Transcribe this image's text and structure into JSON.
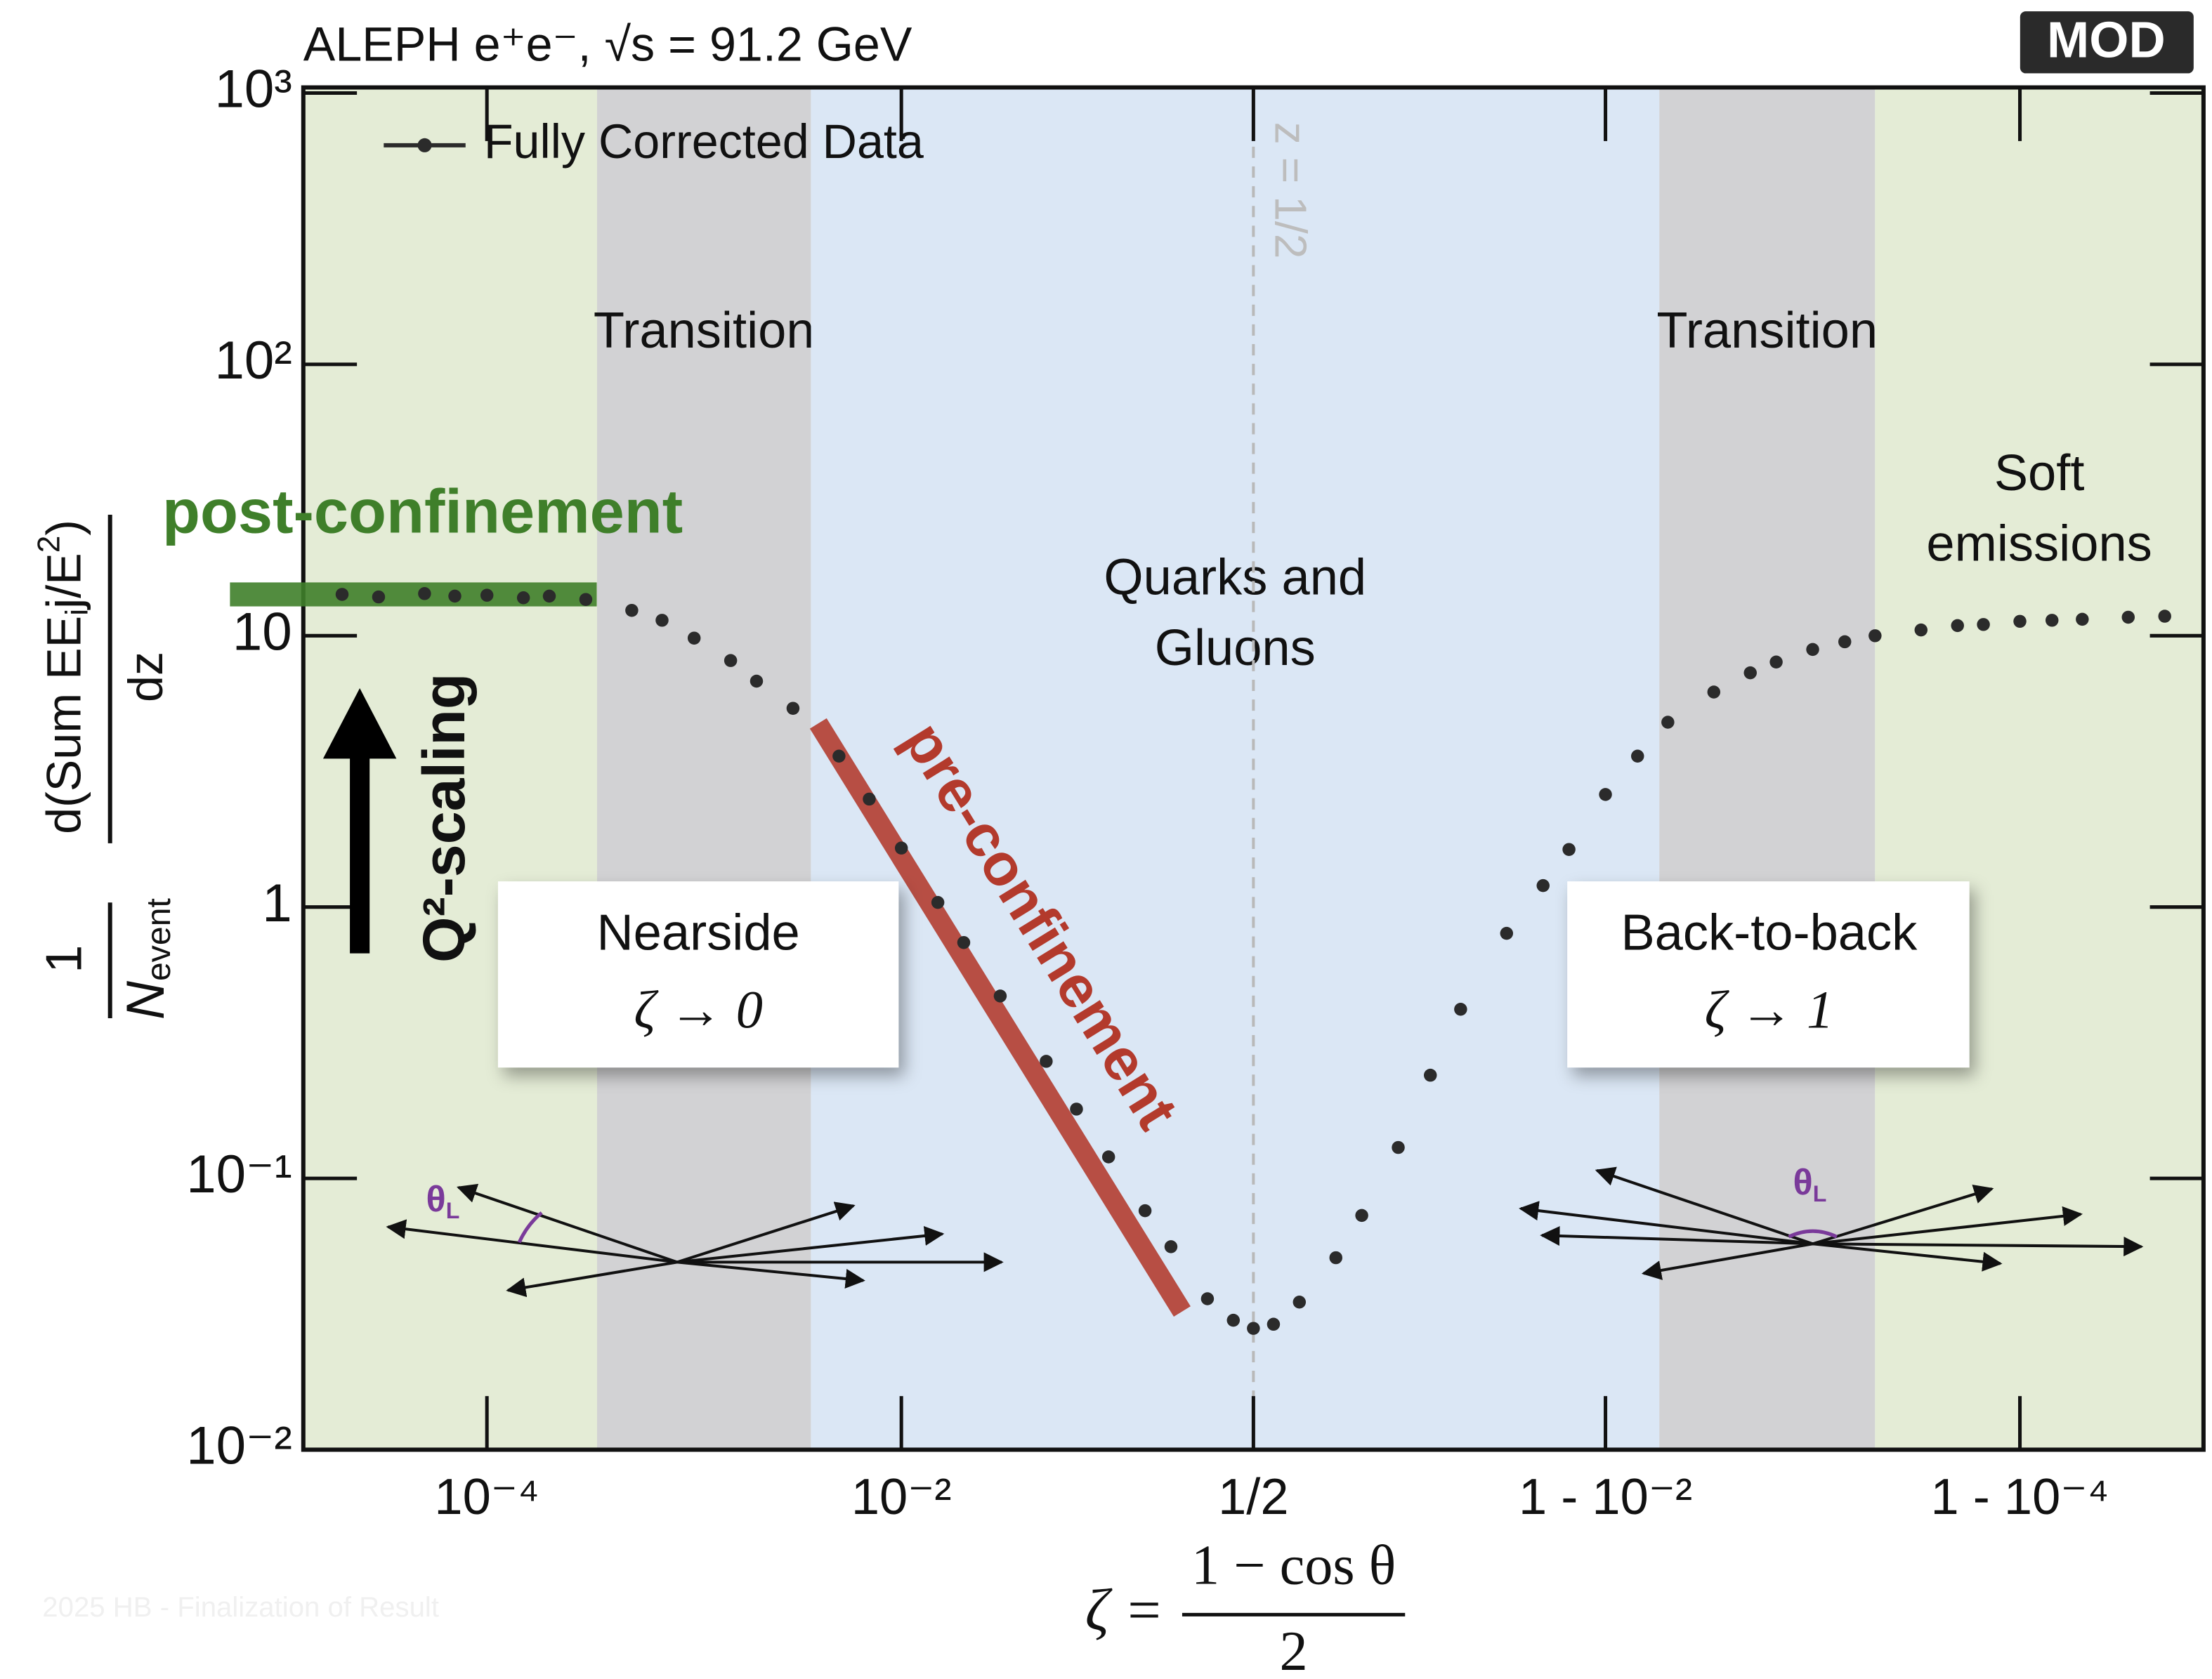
{
  "chart_data": {
    "type": "scatter",
    "title": "ALEPH e⁺e⁻, √s = 91.2 GeV",
    "logo": "MOD",
    "watermark": "2025 HB - Finalization of Result",
    "xscale": "double-log",
    "yscale": "log",
    "xlim": [
      1.3e-05,
      0.999987
    ],
    "ylim": [
      0.01,
      1000
    ],
    "xticks": [
      {
        "value": 0.0001,
        "label": "10⁻⁴"
      },
      {
        "value": 0.01,
        "label": "10⁻²"
      },
      {
        "value": 0.5,
        "label": "1/2"
      },
      {
        "value": 0.99,
        "label": "1 - 10⁻²"
      },
      {
        "value": 0.9999,
        "label": "1 - 10⁻⁴"
      }
    ],
    "yticks": [
      {
        "value": 0.01,
        "label": "10⁻²"
      },
      {
        "value": 0.1,
        "label": "10⁻¹"
      },
      1,
      10,
      {
        "value": 100,
        "label": "10²"
      },
      {
        "value": 1000,
        "label": "10³"
      }
    ],
    "xlabel": {
      "lhs": "ζ =",
      "numerator": "1 − cos θ",
      "denominator": "2"
    },
    "ylabel": {
      "num1": "1",
      "den1": "N",
      "den1_sub": "event",
      "num2": "d(Sum EE",
      "num2_sub": "i",
      "num2_mid": "j/E",
      "num2_sup": "2",
      "num2_end": ")",
      "den2": "dz"
    },
    "legend": "upper left",
    "regions": [
      {
        "from": 1.3e-05,
        "to": 0.00034,
        "color": "#e4ecd6",
        "label": []
      },
      {
        "from": 0.00034,
        "to": 0.00366,
        "color": "#d2d2d4",
        "label": [
          "Transition"
        ]
      },
      {
        "from": 0.00366,
        "to": 0.9945,
        "color": "#dbe7f5",
        "label": [
          "Quarks and",
          "Gluons"
        ]
      },
      {
        "from": 0.9945,
        "to": 0.9995,
        "color": "#d2d2d4",
        "label": [
          "Transition"
        ]
      },
      {
        "from": 0.9995,
        "to": 0.999987,
        "color": "#e4ecd6",
        "label": [
          "Soft",
          "emissions"
        ]
      }
    ],
    "ref_line": {
      "x": 0.5,
      "label": "z = 1/2"
    },
    "annotations": {
      "post": "post-confinement",
      "pre": "pre-confinement",
      "scaling": "Q²-scaling",
      "nearside": "Nearside",
      "nearside_limit": "ζ → 0",
      "backtoback": "Back-to-back",
      "backtoback_limit": "ζ → 1",
      "theta": "θ",
      "theta_sub": "L"
    },
    "series": [
      {
        "name": "Fully Corrected Data",
        "color": "#2b2b2b",
        "x": [
          2e-05,
          3e-05,
          5e-05,
          7e-05,
          0.0001,
          0.00015,
          0.0002,
          0.0003,
          0.0005,
          0.0007,
          0.001,
          0.0015,
          0.002,
          0.003,
          0.005,
          0.007,
          0.01,
          0.015,
          0.02,
          0.03,
          0.05,
          0.07,
          0.1,
          0.15,
          0.2,
          0.3,
          0.4,
          0.5,
          0.6,
          0.7,
          0.8,
          0.85,
          0.9,
          0.93,
          0.95,
          0.97,
          0.98,
          0.985,
          0.99,
          0.993,
          0.995,
          0.997,
          0.998,
          0.9985,
          0.999,
          0.9993,
          0.9995,
          0.9997,
          0.9998,
          0.99985,
          0.9999,
          0.99993,
          0.99995,
          0.99997,
          0.99998
        ],
        "values": [
          14.2,
          13.9,
          14.3,
          14.0,
          14.1,
          13.8,
          14.0,
          13.6,
          12.4,
          11.4,
          9.8,
          8.1,
          6.8,
          5.4,
          3.6,
          2.5,
          1.65,
          1.04,
          0.74,
          0.47,
          0.27,
          0.18,
          0.12,
          0.076,
          0.056,
          0.036,
          0.03,
          0.028,
          0.029,
          0.035,
          0.051,
          0.073,
          0.13,
          0.24,
          0.42,
          0.8,
          1.2,
          1.63,
          2.6,
          3.6,
          4.8,
          6.2,
          7.3,
          8,
          8.9,
          9.5,
          10,
          10.5,
          10.9,
          11,
          11.3,
          11.4,
          11.5,
          11.7,
          11.8
        ]
      }
    ]
  }
}
